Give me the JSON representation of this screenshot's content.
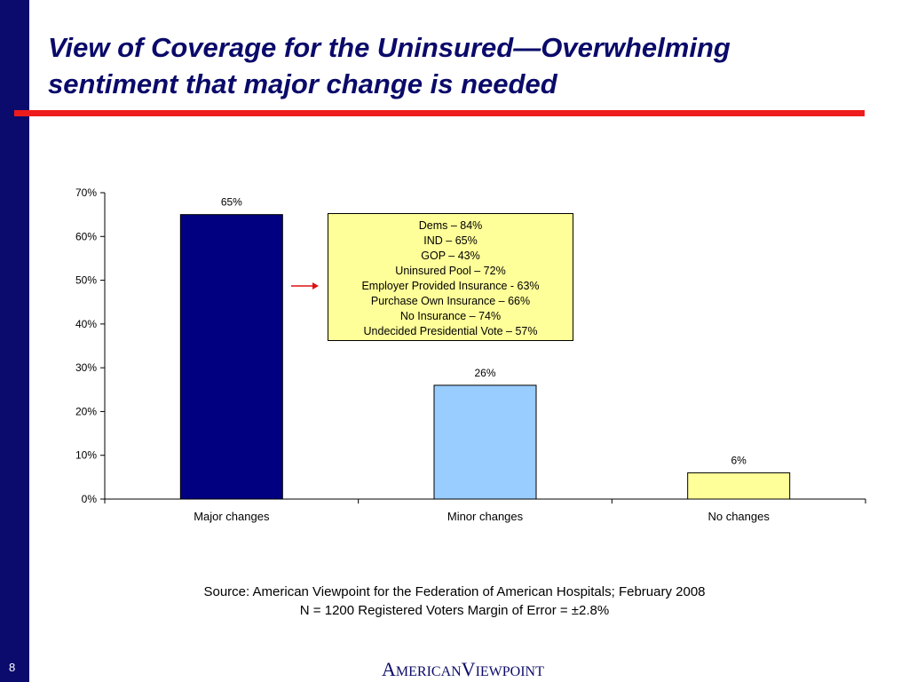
{
  "slide": {
    "title_line1": "View of Coverage for the Uninsured—Overwhelming",
    "title_line2": "sentiment that major change is needed",
    "number": "8"
  },
  "colors": {
    "sidebar": "#0b0b6e",
    "title_rule": "#ee1c1c",
    "arrow": "#dd1111",
    "callout_bg": "#ffff99"
  },
  "chart_data": {
    "type": "bar",
    "categories": [
      "Major changes",
      "Minor changes",
      "No changes"
    ],
    "values": [
      65,
      26,
      6
    ],
    "data_labels": [
      "65%",
      "26%",
      "6%"
    ],
    "bar_colors": [
      "#000080",
      "#99ccff",
      "#ffff99"
    ],
    "ylim": [
      0,
      70
    ],
    "yticks": [
      0,
      10,
      20,
      30,
      40,
      50,
      60,
      70
    ],
    "ytick_labels": [
      "0%",
      "10%",
      "20%",
      "30%",
      "40%",
      "50%",
      "60%",
      "70%"
    ],
    "title": "",
    "xlabel": "",
    "ylabel": "",
    "grid": false,
    "annotation": {
      "lines": [
        "Dems – 84%",
        "IND – 65%",
        "GOP – 43%",
        "Uninsured Pool – 72%",
        "Employer Provided Insurance - 63%",
        "Purchase Own Insurance – 66%",
        "No Insurance – 74%",
        "Undecided Presidential Vote – 57%"
      ],
      "points_to": "Major changes"
    }
  },
  "footer": {
    "source_line1": "Source: American Viewpoint for the Federation of American Hospitals; February 2008",
    "source_line2": "N = 1200 Registered Voters  Margin of Error = ±2.8%",
    "logo": {
      "a_cap": "A",
      "a_rest": "MERICAN",
      "v_cap": "V",
      "v_rest": "IEWPOINT"
    }
  }
}
